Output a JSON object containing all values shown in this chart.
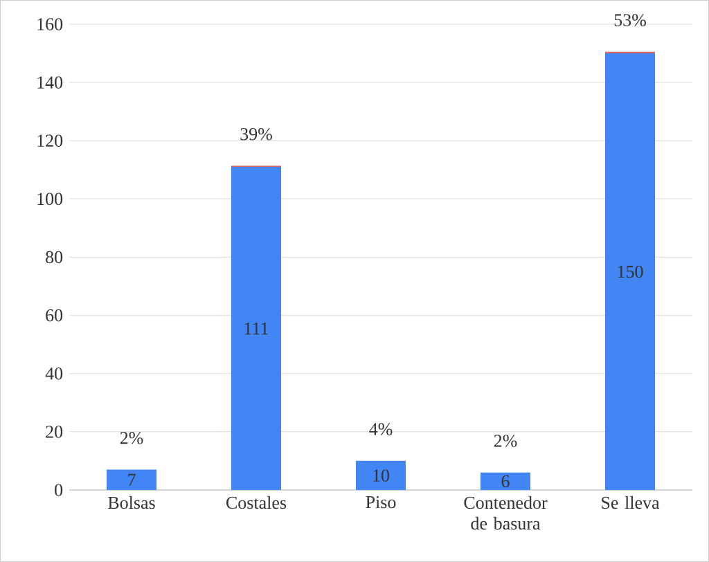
{
  "chart_data": {
    "type": "bar",
    "stacked": true,
    "categories": [
      "Bolsas",
      "Costales",
      "Piso",
      "Contenedor de basura",
      "Se lleva"
    ],
    "series": [
      {
        "color": "#4285f4",
        "values": [
          7,
          111,
          10,
          6,
          150
        ],
        "value_labels": [
          "7",
          "111",
          "10",
          "6",
          "150"
        ]
      },
      {
        "color": "#e06666",
        "values": [
          0.02,
          0.39,
          0.04,
          0.02,
          0.53
        ],
        "value_labels": [
          "2%",
          "39%",
          "4%",
          "2%",
          "53%"
        ]
      }
    ],
    "ylim": [
      0,
      160
    ],
    "yticks": [
      0,
      20,
      40,
      60,
      80,
      100,
      120,
      140,
      160
    ],
    "grid": "y"
  }
}
